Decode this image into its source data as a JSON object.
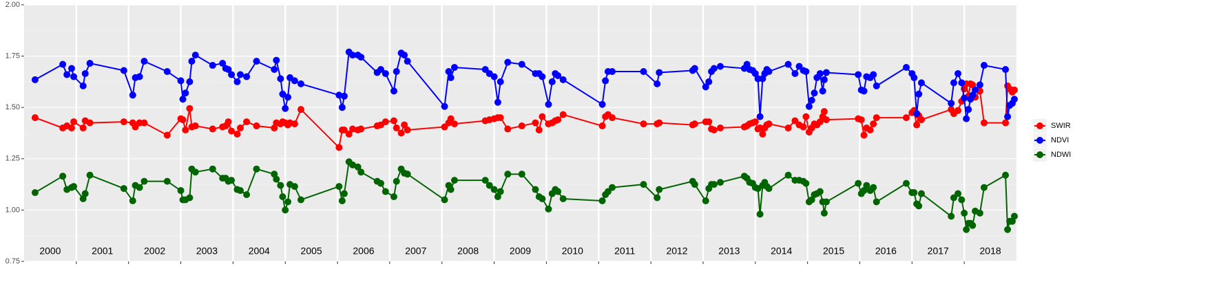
{
  "chart_data": {
    "type": "line",
    "years": [
      "2000",
      "2001",
      "2002",
      "2003",
      "2004",
      "2005",
      "2006",
      "2007",
      "2008",
      "2009",
      "2010",
      "2011",
      "2012",
      "2013",
      "2014",
      "2015",
      "2016",
      "2017",
      "2018"
    ],
    "x": [
      2000.21,
      2000.74,
      2000.82,
      2000.91,
      2000.95,
      2001.13,
      2001.17,
      2001.26,
      2001.91,
      2002.08,
      2002.13,
      2002.21,
      2002.3,
      2002.74,
      2003,
      2003.04,
      2003.09,
      2003.17,
      2003.21,
      2003.28,
      2003.61,
      2003.8,
      2003.86,
      2003.91,
      2003.97,
      2004.08,
      2004.14,
      2004.26,
      2004.45,
      2004.79,
      2004.83,
      2004.91,
      2004.95,
      2005,
      2005.05,
      2005.09,
      2005.18,
      2005.3,
      2006.03,
      2006.09,
      2006.13,
      2006.22,
      2006.29,
      2006.39,
      2006.45,
      2006.76,
      2006.83,
      2006.92,
      2007.08,
      2007.13,
      2007.22,
      2007.28,
      2007.34,
      2008.05,
      2008.13,
      2008.17,
      2008.24,
      2008.83,
      2008.91,
      2009,
      2009.07,
      2009.12,
      2009.26,
      2009.53,
      2009.79,
      2009.86,
      2009.92,
      2010.04,
      2010.11,
      2010.17,
      2010.22,
      2010.32,
      2011.07,
      2011.13,
      2011.18,
      2011.26,
      2011.86,
      2012.12,
      2012.16,
      2012.8,
      2012.84,
      2013.05,
      2013.11,
      2013.16,
      2013.21,
      2013.33,
      2013.79,
      2013.84,
      2013.89,
      2013.95,
      2014,
      2014.05,
      2014.09,
      2014.14,
      2014.18,
      2014.22,
      2014.26,
      2014.63,
      2014.76,
      2014.84,
      2014.92,
      2014.97,
      2015.03,
      2015.08,
      2015.13,
      2015.18,
      2015.24,
      2015.29,
      2015.32,
      2015.36,
      2015.97,
      2016.03,
      2016.08,
      2016.13,
      2016.2,
      2016.26,
      2016.32,
      2016.89,
      2017,
      2017.04,
      2017.09,
      2017.13,
      2017.18,
      2017.75,
      2017.8,
      2017.88,
      2017.95,
      2018,
      2018.04,
      2018.08,
      2018.12,
      2018.16,
      2018.21,
      2018.3,
      2018.38,
      2018.79,
      2018.83,
      2018.87,
      2018.92,
      2018.96
    ],
    "series": [
      {
        "name": "SWIR",
        "color": "#ff0000",
        "values": [
          1.45,
          1.4,
          1.41,
          1.4,
          1.43,
          1.4,
          1.435,
          1.425,
          1.43,
          1.425,
          1.405,
          1.425,
          1.425,
          1.365,
          1.445,
          1.44,
          1.39,
          1.495,
          1.405,
          1.41,
          1.395,
          1.405,
          1.41,
          1.43,
          1.385,
          1.37,
          1.4,
          1.43,
          1.41,
          1.4,
          1.425,
          1.42,
          1.43,
          1.425,
          1.415,
          1.425,
          1.42,
          1.49,
          1.305,
          1.39,
          1.39,
          1.37,
          1.395,
          1.39,
          1.395,
          1.41,
          1.415,
          1.43,
          1.435,
          1.4,
          1.375,
          1.415,
          1.39,
          1.405,
          1.425,
          1.445,
          1.42,
          1.435,
          1.44,
          1.445,
          1.45,
          1.45,
          1.395,
          1.41,
          1.425,
          1.39,
          1.455,
          1.42,
          1.425,
          1.435,
          1.44,
          1.465,
          1.41,
          1.455,
          1.465,
          1.45,
          1.42,
          1.42,
          1.425,
          1.415,
          1.42,
          1.43,
          1.43,
          1.395,
          1.39,
          1.4,
          1.405,
          1.41,
          1.42,
          1.425,
          1.43,
          1.395,
          1.4,
          1.37,
          1.4,
          1.415,
          1.42,
          1.4,
          1.435,
          1.415,
          1.405,
          1.455,
          1.38,
          1.4,
          1.42,
          1.415,
          1.43,
          1.455,
          1.48,
          1.44,
          1.445,
          1.44,
          1.365,
          1.4,
          1.39,
          1.42,
          1.45,
          1.45,
          1.475,
          1.485,
          1.415,
          1.46,
          1.44,
          1.49,
          1.47,
          1.485,
          1.53,
          1.59,
          1.615,
          1.555,
          1.615,
          1.61,
          1.55,
          1.58,
          1.425,
          1.425,
          1.605,
          1.59,
          1.575,
          1.585
        ]
      },
      {
        "name": "NDVI",
        "color": "#0000ff",
        "values": [
          1.635,
          1.71,
          1.66,
          1.69,
          1.65,
          1.605,
          1.665,
          1.715,
          1.68,
          1.56,
          1.645,
          1.65,
          1.725,
          1.675,
          1.63,
          1.54,
          1.57,
          1.625,
          1.725,
          1.755,
          1.705,
          1.715,
          1.69,
          1.685,
          1.66,
          1.625,
          1.66,
          1.65,
          1.725,
          1.685,
          1.73,
          1.64,
          1.565,
          1.495,
          1.55,
          1.645,
          1.63,
          1.615,
          1.56,
          1.5,
          1.555,
          1.77,
          1.755,
          1.755,
          1.745,
          1.67,
          1.685,
          1.665,
          1.58,
          1.675,
          1.765,
          1.755,
          1.725,
          1.505,
          1.675,
          1.645,
          1.695,
          1.685,
          1.665,
          1.65,
          1.525,
          1.625,
          1.72,
          1.71,
          1.665,
          1.665,
          1.65,
          1.515,
          1.625,
          1.665,
          1.655,
          1.635,
          1.515,
          1.63,
          1.675,
          1.675,
          1.675,
          1.615,
          1.67,
          1.68,
          1.69,
          1.6,
          1.625,
          1.675,
          1.69,
          1.7,
          1.69,
          1.71,
          1.685,
          1.68,
          1.665,
          1.64,
          1.455,
          1.64,
          1.665,
          1.685,
          1.675,
          1.71,
          1.665,
          1.7,
          1.68,
          1.675,
          1.505,
          1.535,
          1.57,
          1.645,
          1.665,
          1.58,
          1.635,
          1.67,
          1.66,
          1.585,
          1.58,
          1.65,
          1.645,
          1.66,
          1.605,
          1.695,
          1.665,
          1.645,
          1.47,
          1.565,
          1.62,
          1.52,
          1.62,
          1.665,
          1.62,
          1.545,
          1.445,
          1.49,
          1.54,
          1.56,
          1.585,
          1.61,
          1.705,
          1.685,
          1.455,
          1.51,
          1.52,
          1.54
        ]
      },
      {
        "name": "NDWI",
        "color": "#006400",
        "values": [
          1.085,
          1.165,
          1.1,
          1.11,
          1.115,
          1.055,
          1.08,
          1.17,
          1.105,
          1.045,
          1.12,
          1.11,
          1.14,
          1.14,
          1.095,
          1.05,
          1.05,
          1.06,
          1.2,
          1.185,
          1.2,
          1.155,
          1.155,
          1.14,
          1.145,
          1.1,
          1.095,
          1.075,
          1.2,
          1.175,
          1.15,
          1.12,
          1.065,
          1.0,
          1.04,
          1.125,
          1.115,
          1.05,
          1.115,
          1.045,
          1.08,
          1.235,
          1.22,
          1.21,
          1.185,
          1.14,
          1.13,
          1.09,
          1.065,
          1.14,
          1.2,
          1.18,
          1.175,
          1.05,
          1.12,
          1.1,
          1.145,
          1.145,
          1.12,
          1.1,
          1.065,
          1.09,
          1.175,
          1.175,
          1.1,
          1.065,
          1.055,
          1.005,
          1.08,
          1.1,
          1.09,
          1.055,
          1.045,
          1.075,
          1.09,
          1.11,
          1.125,
          1.06,
          1.1,
          1.14,
          1.125,
          1.045,
          1.105,
          1.125,
          1.125,
          1.135,
          1.165,
          1.155,
          1.135,
          1.13,
          1.11,
          1.105,
          0.98,
          1.12,
          1.135,
          1.115,
          1.105,
          1.17,
          1.145,
          1.145,
          1.14,
          1.13,
          1.04,
          1.05,
          1.075,
          1.08,
          1.09,
          1.04,
          0.985,
          1.04,
          1.13,
          1.08,
          1.095,
          1.12,
          1.095,
          1.11,
          1.04,
          1.13,
          1.085,
          1.085,
          1.03,
          1.02,
          1.08,
          0.97,
          1.06,
          1.08,
          1.05,
          0.985,
          0.905,
          0.935,
          0.935,
          0.925,
          0.995,
          0.985,
          1.11,
          1.17,
          0.905,
          0.945,
          0.945,
          0.97
        ]
      }
    ],
    "xlim": [
      2000,
      2019
    ],
    "xticks": [
      2001,
      2002,
      2003,
      2004,
      2005,
      2006,
      2007,
      2008,
      2009,
      2010,
      2011,
      2012,
      2013,
      2014,
      2015,
      2016,
      2017,
      2018
    ],
    "ylim": [
      0.75,
      2
    ],
    "yticks": [
      {
        "value": 0.75,
        "label": "0.75"
      },
      {
        "value": 1,
        "label": "1.00"
      },
      1.25,
      {
        "value": 1.5,
        "label": "1.50"
      },
      1.75,
      {
        "value": 2,
        "label": "2.00"
      }
    ],
    "grid": true,
    "legend": "right"
  }
}
